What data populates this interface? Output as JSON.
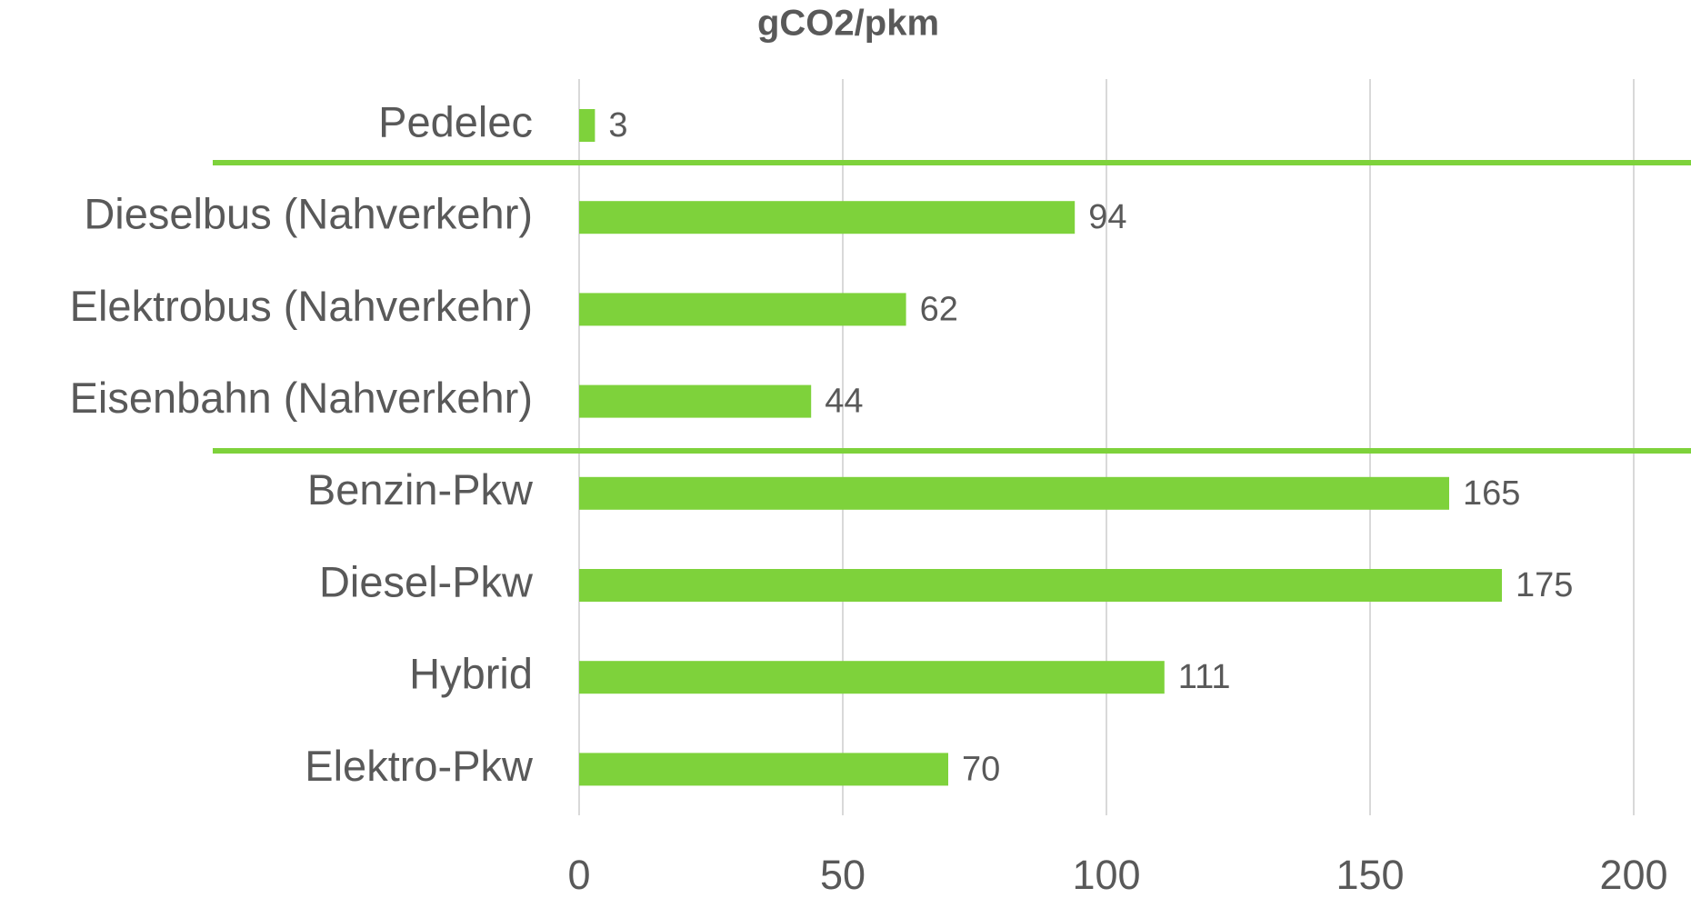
{
  "chart_data": {
    "type": "bar",
    "title": "gCO2/pkm",
    "categories": [
      "Pedelec",
      "Dieselbus (Nahverkehr)",
      "Elektrobus (Nahverkehr)",
      "Eisenbahn (Nahverkehr)",
      "Benzin-Pkw",
      "Diesel-Pkw",
      "Hybrid",
      "Elektro-Pkw"
    ],
    "values": [
      3,
      94,
      62,
      44,
      165,
      175,
      111,
      70
    ],
    "color": "#7ed23b",
    "xlim": [
      0,
      200
    ],
    "xticks": [
      0,
      50,
      100,
      150,
      200
    ],
    "grid": true
  }
}
